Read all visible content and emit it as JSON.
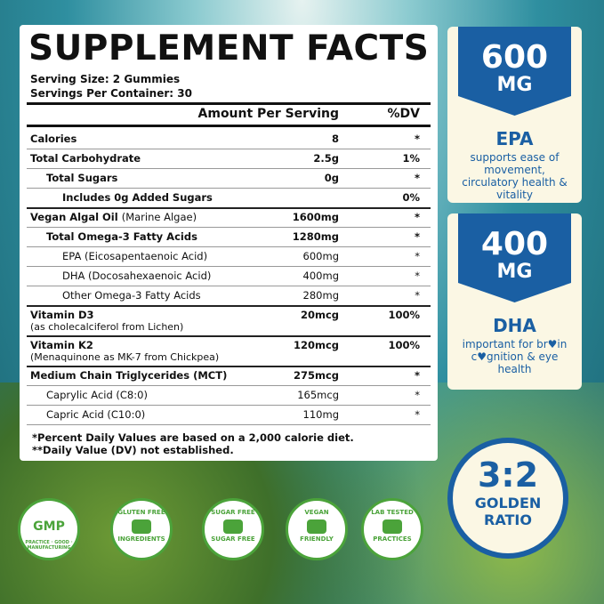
{
  "facts": {
    "title": "SUPPLEMENT FACTS",
    "serving_size": "Serving Size: 2 Gummies",
    "servings_per_container": "Servings Per Container: 30",
    "header": [
      "Amount Per Serving",
      "%DV"
    ],
    "rows": [
      {
        "name": "Calories",
        "amount": "8",
        "dv": "*"
      },
      {
        "name": "Total Carbohydrate",
        "amount": "2.5g",
        "dv": "1%"
      },
      {
        "name": "Total Sugars",
        "amount": "0g",
        "dv": "*"
      },
      {
        "name": "Includes 0g Added Sugars",
        "dv": "0%"
      },
      {
        "name": "Vegan Algal Oil",
        "note": "(Marine Algae)",
        "amount": "1600mg",
        "dv": "*"
      },
      {
        "name": "Total Omega-3 Fatty Acids",
        "amount": "1280mg",
        "dv": "*"
      },
      {
        "name": "EPA (Eicosapentaenoic Acid)",
        "amount": "600mg",
        "dv": "*"
      },
      {
        "name": "DHA (Docosahexaenoic Acid)",
        "amount": "400mg",
        "dv": "*"
      },
      {
        "name": "Other Omega-3 Fatty Acids",
        "amount": "280mg",
        "dv": "*"
      },
      {
        "name": "Vitamin D3",
        "sub": "(as cholecalciferol from Lichen)",
        "amount": "20mcg",
        "dv": "100%"
      },
      {
        "name": "Vitamin K2",
        "sub": "(Menaquinone as MK-7 from Chickpea)",
        "amount": "120mcg",
        "dv": "100%"
      },
      {
        "name": "Medium Chain Triglycerides (MCT)",
        "amount": "275mcg",
        "dv": "*"
      },
      {
        "name": "Caprylic Acid (C8:0)",
        "amount": "165mcg",
        "dv": "*"
      },
      {
        "name": "Capric Acid (C10:0)",
        "amount": "110mg",
        "dv": "*"
      }
    ],
    "footnotes": [
      "*Percent Daily Values are based on a 2,000 calorie diet.",
      "**Daily Value (DV) not established."
    ]
  },
  "cards": [
    {
      "amount": "600",
      "unit": "MG",
      "name": "EPA",
      "text": "supports ease of movement, circulatory health & vitality"
    },
    {
      "amount": "400",
      "unit": "MG",
      "name": "DHA",
      "text": "important for br♥in c♥gnition & eye health"
    }
  ],
  "ratio": {
    "value": "3:2",
    "line1": "GOLDEN",
    "line2": "RATIO"
  },
  "badges": [
    {
      "top": "GMP",
      "bottom": "PRACTICE · GOOD · MANUFACTURING"
    },
    {
      "top": "GLUTEN FREE",
      "bottom": "INGREDIENTS"
    },
    {
      "top": "SUGAR FREE",
      "bottom": "SUGAR FREE"
    },
    {
      "top": "VEGAN",
      "bottom": "FRIENDLY"
    },
    {
      "top": "LAB TESTED",
      "bottom": "PRACTICES"
    }
  ]
}
